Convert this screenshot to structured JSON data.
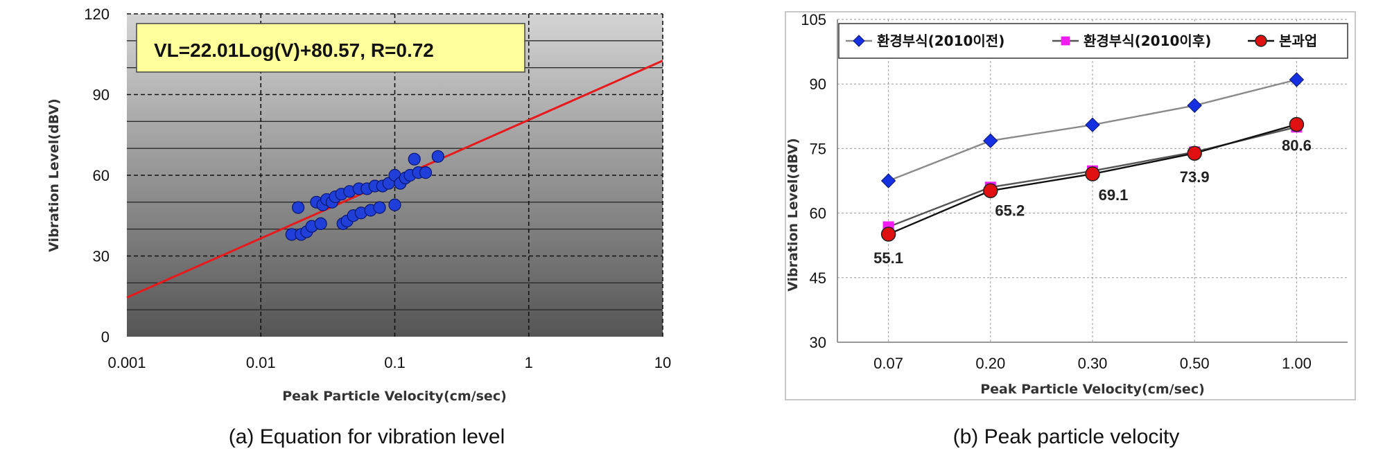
{
  "chart_data": [
    {
      "type": "scatter",
      "xlabel": "Peak Particle Velocity(cm/sec)",
      "ylabel": "Vibration Level(dBV)",
      "x_scale": "log",
      "xlim": [
        0.001,
        10
      ],
      "ylim": [
        0,
        120
      ],
      "x_ticks": [
        "0.001",
        "0.01",
        "0.1",
        "1",
        "10"
      ],
      "y_ticks": [
        "0",
        "30",
        "60",
        "90",
        "120"
      ],
      "equation": "VL=22.01Log(V)+80.57, R=0.72",
      "fit": {
        "slope": 22.01,
        "intercept": 80.57,
        "color": "#e8191c"
      },
      "point_color": "#1f3fd8",
      "points": [
        [
          0.017,
          38
        ],
        [
          0.019,
          48
        ],
        [
          0.02,
          38
        ],
        [
          0.022,
          39
        ],
        [
          0.024,
          41
        ],
        [
          0.026,
          50
        ],
        [
          0.028,
          42
        ],
        [
          0.029,
          49
        ],
        [
          0.031,
          51
        ],
        [
          0.034,
          50
        ],
        [
          0.036,
          52
        ],
        [
          0.04,
          53
        ],
        [
          0.041,
          42
        ],
        [
          0.044,
          43
        ],
        [
          0.046,
          54
        ],
        [
          0.049,
          45
        ],
        [
          0.054,
          55
        ],
        [
          0.056,
          46
        ],
        [
          0.062,
          55
        ],
        [
          0.066,
          47
        ],
        [
          0.071,
          56
        ],
        [
          0.077,
          48
        ],
        [
          0.081,
          56
        ],
        [
          0.09,
          57
        ],
        [
          0.1,
          60
        ],
        [
          0.1,
          49
        ],
        [
          0.11,
          57
        ],
        [
          0.12,
          59
        ],
        [
          0.13,
          60
        ],
        [
          0.14,
          66
        ],
        [
          0.15,
          61
        ],
        [
          0.17,
          61
        ],
        [
          0.21,
          67
        ]
      ],
      "caption": "(a) Equation for vibration level"
    },
    {
      "type": "line",
      "xlabel": "Peak Particle Velocity(cm/sec)",
      "ylabel": "Vibration Level(dBV)",
      "categories": [
        "0.07",
        "0.20",
        "0.30",
        "0.50",
        "1.00"
      ],
      "ylim": [
        30,
        105
      ],
      "y_ticks": [
        "30",
        "45",
        "60",
        "75",
        "90",
        "105"
      ],
      "series": [
        {
          "name": "환경부식(2010이전)",
          "color": "#1530e0",
          "line": "#8a8a8a",
          "marker": "diamond",
          "values": [
            67.5,
            76.8,
            80.5,
            85,
            91
          ]
        },
        {
          "name": "환경부식(2010이후)",
          "color": "#f21cf2",
          "line": "#555555",
          "marker": "square",
          "values": [
            56.8,
            66,
            69.8,
            74.2,
            80
          ]
        },
        {
          "name": "본과업",
          "color": "#e01010",
          "line": "#111111",
          "marker": "circle",
          "values": [
            55.1,
            65.2,
            69.1,
            73.9,
            80.6
          ]
        }
      ],
      "data_labels": [
        "55.1",
        "65.2",
        "69.1",
        "73.9",
        "80.6"
      ],
      "legend_position": "top",
      "caption": "(b) Peak particle velocity"
    }
  ]
}
